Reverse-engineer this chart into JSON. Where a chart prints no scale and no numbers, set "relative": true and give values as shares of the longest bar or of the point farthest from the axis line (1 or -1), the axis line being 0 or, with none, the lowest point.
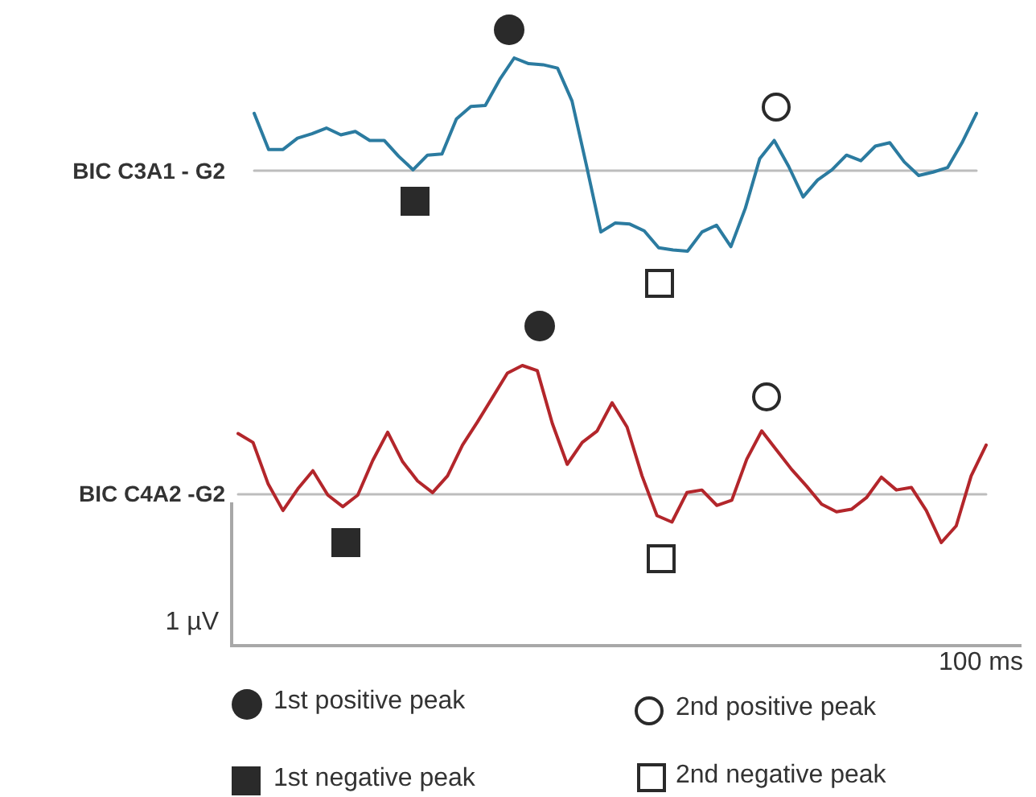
{
  "chart_data": [
    {
      "type": "line",
      "relative": true,
      "ylabel": "BIC C3A1 - G2",
      "categories": [
        null,
        null,
        null,
        null,
        null,
        null,
        null,
        null,
        null,
        null,
        null,
        null,
        null,
        null,
        null,
        null,
        null,
        null,
        null,
        null,
        null,
        null,
        null,
        null,
        null,
        null,
        null,
        null,
        null,
        null,
        null,
        null,
        null,
        null,
        null,
        null,
        null,
        null,
        null,
        null,
        null,
        null,
        null,
        null,
        null,
        null,
        null,
        null,
        null,
        null,
        null
      ],
      "series": [
        {
          "color": "#2b7ba0",
          "values": [
            0.51,
            0.19,
            0.19,
            0.29,
            0.33,
            0.38,
            0.32,
            0.35,
            0.27,
            0.27,
            0.13,
            0.01,
            0.14,
            0.15,
            0.46,
            0.57,
            0.58,
            0.81,
            1,
            0.95,
            0.94,
            0.91,
            0.62,
            0.05,
            -0.54,
            -0.46,
            -0.47,
            -0.53,
            -0.68,
            -0.7,
            -0.71,
            -0.54,
            -0.48,
            -0.67,
            -0.33,
            0.11,
            0.27,
            0.04,
            -0.23,
            -0.08,
            0.01,
            0.14,
            0.09,
            0.22,
            0.25,
            0.08,
            -0.04,
            -0.01,
            0.03,
            0.25,
            0.51
          ]
        }
      ]
    },
    {
      "type": "line",
      "relative": true,
      "ylabel": "BIC C4A2 -G2",
      "annotations": [
        "1 µV",
        "100 ms",
        "1st positive peak",
        "2nd positive peak",
        "1st negative peak",
        "2nd negative peak"
      ],
      "categories": [
        null,
        null,
        null,
        null,
        null,
        null,
        null,
        null,
        null,
        null,
        null,
        null,
        null,
        null,
        null,
        null,
        null,
        null,
        null,
        null,
        null,
        null,
        null,
        null,
        null,
        null,
        null,
        null,
        null,
        null,
        null,
        null,
        null,
        null,
        null,
        null,
        null,
        null,
        null,
        null,
        null,
        null,
        null,
        null,
        null,
        null,
        null,
        null,
        null,
        null,
        null
      ],
      "series": [
        {
          "color": "#b3262b",
          "values": [
            0.47,
            0.4,
            0.08,
            -0.13,
            0.04,
            0.18,
            -0.01,
            -0.1,
            -0.01,
            0.26,
            0.48,
            0.25,
            0.1,
            0.01,
            0.14,
            0.38,
            0.56,
            0.75,
            0.94,
            1,
            0.96,
            0.55,
            0.23,
            0.4,
            0.49,
            0.71,
            0.52,
            0.14,
            -0.17,
            -0.22,
            0.01,
            0.03,
            -0.09,
            -0.05,
            0.27,
            0.49,
            0.34,
            0.19,
            0.06,
            -0.08,
            -0.14,
            -0.12,
            -0.03,
            0.13,
            0.03,
            0.05,
            -0.13,
            -0.38,
            -0.25,
            0.14,
            0.38
          ]
        }
      ]
    }
  ]
}
